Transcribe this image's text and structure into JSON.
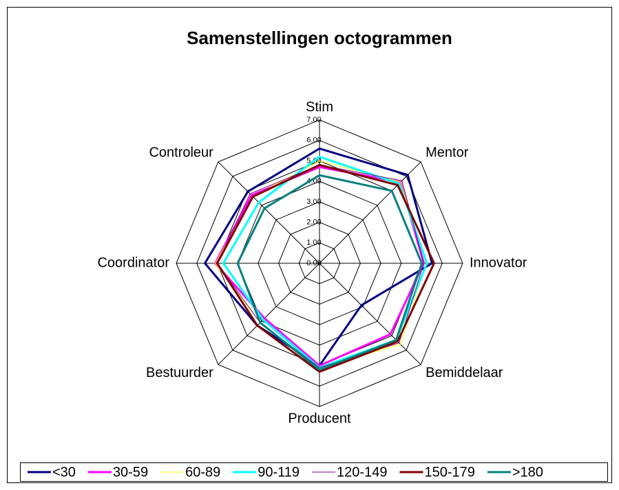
{
  "chart_data": {
    "type": "radar",
    "title": "Samenstellingen octogrammen",
    "categories": [
      "Stim",
      "Mentor",
      "Innovator",
      "Bemiddelaar",
      "Producent",
      "Bestuurder",
      "Coordinator",
      "Controleur"
    ],
    "ylim": [
      0,
      7
    ],
    "yticks": [
      {
        "value": 0,
        "label": "0.00"
      },
      {
        "value": 1,
        "label": "1.00"
      },
      {
        "value": 2,
        "label": "2.00"
      },
      {
        "value": 3,
        "label": "3.00"
      },
      {
        "value": 4,
        "label": "4.00"
      },
      {
        "value": 5,
        "label": "5.00"
      },
      {
        "value": 6,
        "label": "6.00"
      },
      {
        "value": 7,
        "label": "7.00"
      }
    ],
    "grid": true,
    "legend": "bottom",
    "series": [
      {
        "name": "<30",
        "color": "#000080",
        "width": 3,
        "values": [
          5.6,
          6.1,
          5.5,
          2.9,
          5.0,
          4.3,
          5.6,
          4.95
        ]
      },
      {
        "name": "30-59",
        "color": "#ff00ff",
        "width": 3,
        "values": [
          4.7,
          5.6,
          5.1,
          4.9,
          5.0,
          3.8,
          5.1,
          4.7
        ]
      },
      {
        "name": "60-89",
        "color": "#ffff00",
        "width": 1,
        "values": [
          5.0,
          5.6,
          5.2,
          5.6,
          5.1,
          4.1,
          5.1,
          4.6
        ]
      },
      {
        "name": "90-119",
        "color": "#00ffff",
        "width": 3,
        "values": [
          5.2,
          5.5,
          5.25,
          5.3,
          5.1,
          3.9,
          4.7,
          4.2
        ]
      },
      {
        "name": "120-149",
        "color": "#800080",
        "width": 1,
        "values": [
          4.8,
          5.7,
          5.1,
          5.5,
          5.1,
          4.1,
          5.0,
          4.8
        ]
      },
      {
        "name": "150-179",
        "color": "#800000",
        "width": 3,
        "values": [
          4.8,
          5.4,
          5.6,
          5.4,
          5.3,
          4.3,
          5.0,
          4.6
        ]
      },
      {
        "name": ">180",
        "color": "#008080",
        "width": 3,
        "values": [
          4.3,
          5.0,
          5.0,
          5.3,
          5.2,
          4.1,
          4.0,
          3.8
        ]
      }
    ]
  }
}
